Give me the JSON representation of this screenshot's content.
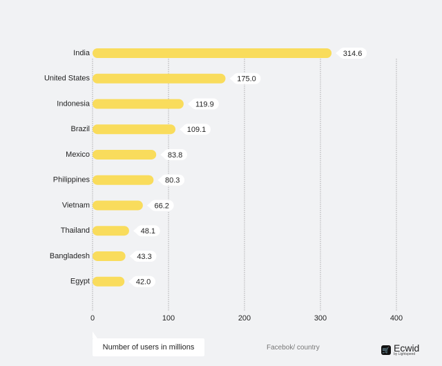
{
  "chart_data": {
    "type": "bar",
    "orientation": "horizontal",
    "categories": [
      "India",
      "United States",
      "Indonesia",
      "Brazil",
      "Mexico",
      "Philippines",
      "Vietnam",
      "Thailand",
      "Bangladesh",
      "Egypt"
    ],
    "values": [
      314.6,
      175.0,
      119.9,
      109.1,
      83.8,
      80.3,
      66.2,
      48.1,
      43.3,
      42.0
    ],
    "value_labels": [
      "314.6",
      "175.0",
      "119.9",
      "109.1",
      "83.8",
      "80.3",
      "66.2",
      "48.1",
      "43.3",
      "42.0"
    ],
    "xlim": [
      0,
      400
    ],
    "xticks": [
      "0",
      "100",
      "200",
      "300",
      "400"
    ],
    "grid": true,
    "xlabel": "Number of users in millions",
    "legend": "bottom-left",
    "colors": {
      "bar": "#f9dc5c",
      "background": "#f1f2f4",
      "grid": "#999999"
    }
  },
  "footer": {
    "legend_label": "Number of users in millions",
    "source": "Facebok/ country",
    "brand_name": "Ecwid",
    "brand_sub": "by Lightspeed",
    "brand_icon": "cart-icon"
  }
}
